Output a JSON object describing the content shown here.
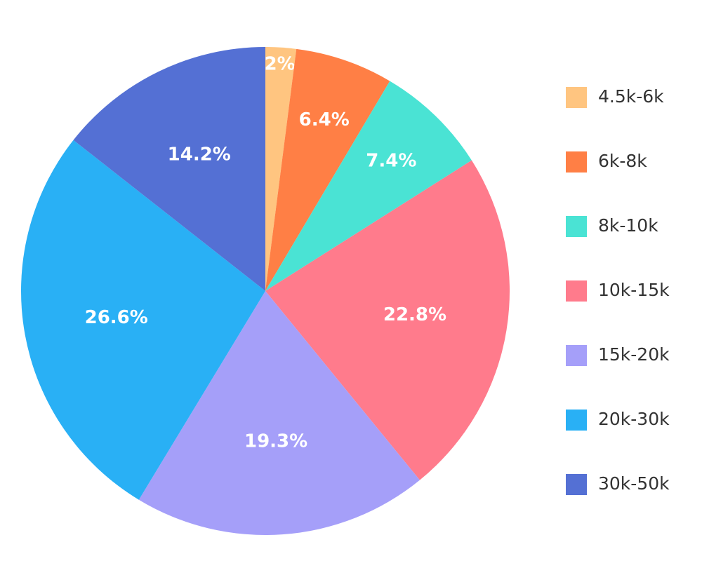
{
  "chart_data": {
    "type": "pie",
    "categories": [
      "4.5k-6k",
      "6k-8k",
      "8k-10k",
      "10k-15k",
      "15k-20k",
      "20k-30k",
      "30k-50k"
    ],
    "values": [
      2,
      6.4,
      7.4,
      22.8,
      19.3,
      26.6,
      14.2
    ],
    "value_labels": [
      "2%",
      "6.4%",
      "7.4%",
      "22.8%",
      "19.3%",
      "26.6%",
      "14.2%"
    ],
    "colors": [
      "#ffc580",
      "#ff7f45",
      "#4ae3d4",
      "#ff7b8c",
      "#a59ff9",
      "#29b0f5",
      "#5470d4"
    ],
    "legend": "right"
  }
}
